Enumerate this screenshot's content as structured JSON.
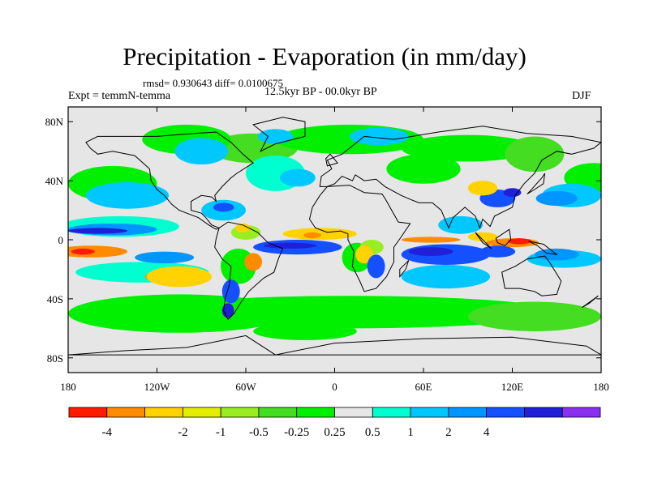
{
  "title": "Precipitation - Evaporation (in mm/day)",
  "stats": "rmsd= 0.930643 diff= 0.0100675",
  "experiment": "Expt = temmN-temma",
  "period": "12.5kyr BP - 00.0kyr BP",
  "season": "DJF",
  "map": {
    "lon_range": [
      -180,
      180
    ],
    "lat_range": [
      -90,
      90
    ],
    "x_ticks": [
      {
        "lon": -180,
        "label": "180"
      },
      {
        "lon": -120,
        "label": "120W"
      },
      {
        "lon": -60,
        "label": "60W"
      },
      {
        "lon": 0,
        "label": "0"
      },
      {
        "lon": 60,
        "label": "60E"
      },
      {
        "lon": 120,
        "label": "120E"
      },
      {
        "lon": 180,
        "label": "180"
      }
    ],
    "y_ticks": [
      {
        "lat": 80,
        "label": "80N"
      },
      {
        "lat": 40,
        "label": "40N"
      },
      {
        "lat": 0,
        "label": "0"
      },
      {
        "lat": -40,
        "label": "40S"
      },
      {
        "lat": -80,
        "label": "80S"
      }
    ],
    "background_color": "#e6e6e6",
    "colorbar": {
      "colors": [
        "#ff1a00",
        "#ff8c00",
        "#ffd200",
        "#e6ee00",
        "#99ee22",
        "#44dd22",
        "#00f000",
        "#e6e6e6",
        "#00ffd0",
        "#00c8ff",
        "#0096ff",
        "#1450ff",
        "#2020d8",
        "#8a30f0"
      ],
      "labels": [
        "-4",
        "-2",
        "-1",
        "-0.5",
        "-0.25",
        "0.25",
        "0.5",
        "1",
        "2",
        "4"
      ],
      "label_after_box": [
        1,
        3,
        4,
        5,
        6,
        7,
        8,
        9,
        10,
        11
      ]
    }
  }
}
